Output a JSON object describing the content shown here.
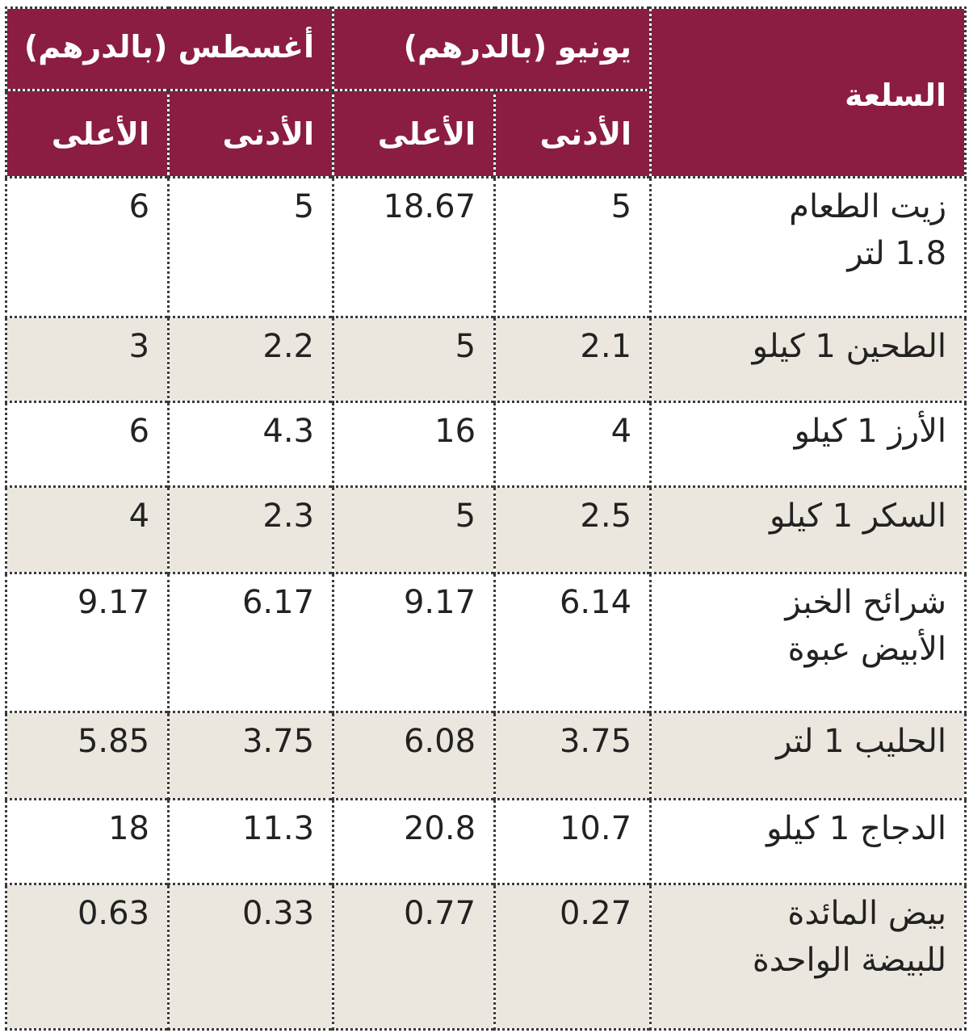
{
  "table": {
    "header": {
      "item": "السلعة",
      "groups": [
        "يونيو (بالدرهم)",
        "أغسطس (بالدرهم)"
      ],
      "subheaders": [
        "الأدنى",
        "الأعلى",
        "الأدنى",
        "الأعلى"
      ]
    },
    "rows": [
      [
        "زيت الطعام\n1.8 لتر",
        "5",
        "18.67",
        "5",
        "6"
      ],
      [
        "الطحين 1 كيلو",
        "2.1",
        "5",
        "2.2",
        "3"
      ],
      [
        "الأرز 1 كيلو",
        "4",
        "16",
        "4.3",
        "6"
      ],
      [
        "السكر 1 كيلو",
        "2.5",
        "5",
        "2.3",
        "4"
      ],
      [
        "شرائح الخبز\nالأبيض عبوة",
        "6.14",
        "9.17",
        "6.17",
        "9.17"
      ],
      [
        "الحليب 1 لتر",
        "3.75",
        "6.08",
        "3.75",
        "5.85"
      ],
      [
        "الدجاج 1 كيلو",
        "10.7",
        "20.8",
        "11.3",
        "18"
      ],
      [
        "بيض المائدة\nللبيضة الواحدة",
        "0.27",
        "0.77",
        "0.33",
        "0.63"
      ]
    ]
  }
}
